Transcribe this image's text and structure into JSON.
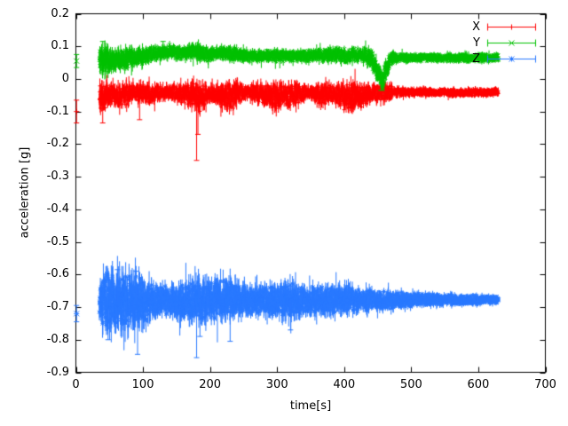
{
  "chart_data": {
    "type": "scatter",
    "title": "",
    "xlabel": "time[s]",
    "ylabel": "acceleration [g]",
    "xlim": [
      0,
      700
    ],
    "ylim": [
      -0.9,
      0.2
    ],
    "grid": false,
    "legend_position": "top-right-inside",
    "xticks": {
      "values": [
        0,
        100,
        200,
        300,
        400,
        500,
        600,
        700
      ],
      "labels": [
        "0",
        "100",
        "200",
        "300",
        "400",
        "500",
        "600",
        "700"
      ]
    },
    "yticks": {
      "values": [
        0.2,
        0.1,
        0,
        -0.1,
        -0.2,
        -0.3,
        -0.4,
        -0.5,
        -0.6,
        -0.7,
        -0.8,
        -0.9
      ],
      "labels": [
        "0.2",
        "0.1",
        "0",
        "-0.1",
        "-0.2",
        "-0.3",
        "-0.4",
        "-0.5",
        "-0.6",
        "-0.7",
        "-0.8",
        "-0.9"
      ]
    },
    "sampling": {
      "t_start": 35,
      "t_end": 630,
      "dt": 0.25,
      "seed": 7
    },
    "series": [
      {
        "name": "X",
        "color": "#ff0000",
        "marker": "plus",
        "style": "errorbars",
        "initial_point": {
          "t": 1,
          "v": -0.1,
          "e": 0.035
        },
        "envelope": [
          [
            35,
            -0.06,
            0.05
          ],
          [
            50,
            -0.045,
            0.03
          ],
          [
            70,
            -0.05,
            0.035
          ],
          [
            90,
            -0.04,
            0.025
          ],
          [
            110,
            -0.05,
            0.03
          ],
          [
            130,
            -0.04,
            0.02
          ],
          [
            150,
            -0.045,
            0.025
          ],
          [
            175,
            -0.05,
            0.035
          ],
          [
            185,
            -0.06,
            0.04
          ],
          [
            200,
            -0.045,
            0.025
          ],
          [
            215,
            -0.055,
            0.035
          ],
          [
            235,
            -0.05,
            0.04
          ],
          [
            255,
            -0.04,
            0.02
          ],
          [
            275,
            -0.045,
            0.03
          ],
          [
            295,
            -0.055,
            0.04
          ],
          [
            310,
            -0.05,
            0.035
          ],
          [
            330,
            -0.045,
            0.03
          ],
          [
            345,
            -0.04,
            0.02
          ],
          [
            365,
            -0.05,
            0.03
          ],
          [
            385,
            -0.045,
            0.025
          ],
          [
            400,
            -0.055,
            0.04
          ],
          [
            415,
            -0.06,
            0.045
          ],
          [
            430,
            -0.05,
            0.03
          ],
          [
            445,
            -0.045,
            0.025
          ],
          [
            460,
            -0.04,
            0.03
          ],
          [
            475,
            -0.04,
            0.015
          ],
          [
            520,
            -0.04,
            0.012
          ],
          [
            570,
            -0.042,
            0.012
          ],
          [
            630,
            -0.04,
            0.012
          ]
        ],
        "spikes": [
          [
            180,
            -0.25
          ],
          [
            182,
            -0.17
          ],
          [
            95,
            -0.125
          ],
          [
            40,
            -0.135
          ]
        ]
      },
      {
        "name": "Y",
        "color": "#00c000",
        "marker": "x",
        "style": "errorbars",
        "initial_point": {
          "t": 1,
          "v": 0.055,
          "e": 0.02
        },
        "envelope": [
          [
            35,
            0.055,
            0.04
          ],
          [
            50,
            0.06,
            0.035
          ],
          [
            65,
            0.055,
            0.03
          ],
          [
            80,
            0.065,
            0.03
          ],
          [
            100,
            0.07,
            0.025
          ],
          [
            120,
            0.08,
            0.02
          ],
          [
            140,
            0.085,
            0.02
          ],
          [
            160,
            0.08,
            0.02
          ],
          [
            180,
            0.085,
            0.025
          ],
          [
            195,
            0.075,
            0.02
          ],
          [
            215,
            0.08,
            0.02
          ],
          [
            240,
            0.075,
            0.02
          ],
          [
            270,
            0.07,
            0.018
          ],
          [
            300,
            0.072,
            0.018
          ],
          [
            330,
            0.07,
            0.018
          ],
          [
            360,
            0.072,
            0.018
          ],
          [
            390,
            0.075,
            0.02
          ],
          [
            410,
            0.07,
            0.02
          ],
          [
            425,
            0.075,
            0.02
          ],
          [
            440,
            0.065,
            0.025
          ],
          [
            450,
            0.02,
            0.03
          ],
          [
            457,
            -0.01,
            0.025
          ],
          [
            463,
            0.03,
            0.03
          ],
          [
            470,
            0.06,
            0.02
          ],
          [
            480,
            0.065,
            0.013
          ],
          [
            550,
            0.065,
            0.012
          ],
          [
            630,
            0.065,
            0.012
          ]
        ],
        "spikes": [
          [
            455,
            -0.035
          ],
          [
            40,
            0.115
          ],
          [
            130,
            0.115
          ]
        ]
      },
      {
        "name": "Z",
        "color": "#2979ff",
        "marker": "asterisk",
        "style": "errorbars",
        "initial_point": {
          "t": 1,
          "v": -0.72,
          "e": 0.025
        },
        "envelope": [
          [
            35,
            -0.68,
            0.06
          ],
          [
            45,
            -0.68,
            0.09
          ],
          [
            60,
            -0.68,
            0.085
          ],
          [
            75,
            -0.68,
            0.08
          ],
          [
            90,
            -0.68,
            0.085
          ],
          [
            105,
            -0.68,
            0.06
          ],
          [
            120,
            -0.68,
            0.05
          ],
          [
            140,
            -0.68,
            0.045
          ],
          [
            160,
            -0.68,
            0.05
          ],
          [
            180,
            -0.675,
            0.065
          ],
          [
            200,
            -0.675,
            0.06
          ],
          [
            220,
            -0.675,
            0.06
          ],
          [
            240,
            -0.675,
            0.05
          ],
          [
            260,
            -0.68,
            0.045
          ],
          [
            280,
            -0.68,
            0.04
          ],
          [
            300,
            -0.68,
            0.045
          ],
          [
            315,
            -0.675,
            0.055
          ],
          [
            330,
            -0.68,
            0.045
          ],
          [
            350,
            -0.68,
            0.04
          ],
          [
            370,
            -0.68,
            0.045
          ],
          [
            390,
            -0.68,
            0.04
          ],
          [
            405,
            -0.675,
            0.045
          ],
          [
            420,
            -0.68,
            0.035
          ],
          [
            440,
            -0.678,
            0.03
          ],
          [
            460,
            -0.678,
            0.03
          ],
          [
            480,
            -0.678,
            0.025
          ],
          [
            510,
            -0.677,
            0.02
          ],
          [
            550,
            -0.677,
            0.018
          ],
          [
            590,
            -0.678,
            0.015
          ],
          [
            630,
            -0.678,
            0.013
          ]
        ],
        "spikes": [
          [
            48,
            -0.8
          ],
          [
            92,
            -0.845
          ],
          [
            180,
            -0.855
          ],
          [
            185,
            -0.79
          ],
          [
            230,
            -0.805
          ],
          [
            62,
            -0.585
          ],
          [
            90,
            -0.59
          ],
          [
            320,
            -0.77
          ]
        ]
      }
    ]
  }
}
